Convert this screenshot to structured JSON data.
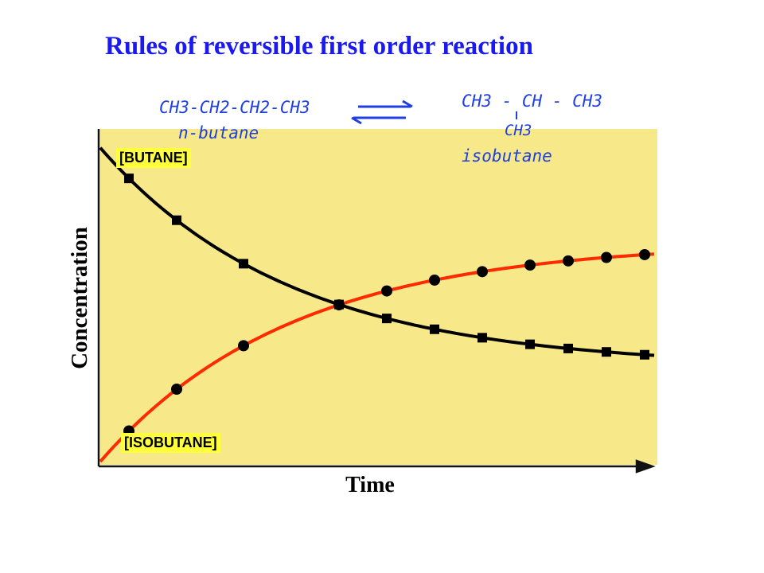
{
  "slide": {
    "title": "Rules of reversible first order reaction"
  },
  "reaction": {
    "reactant_formula": "CH3-CH2-CH2-CH3",
    "reactant_name": "n-butane",
    "product_formula": "CH3 - CH - CH3",
    "product_branch": "CH3",
    "product_name": "isobutane",
    "colors": {
      "ink": "#1f3fe0",
      "arrow": "#1f3fe0"
    }
  },
  "chart_data": {
    "type": "line",
    "xlabel": "Time",
    "ylabel": "Concentration",
    "x_ticks": false,
    "y_ticks": false,
    "grid": false,
    "background": "#f7e98a",
    "series": [
      {
        "name": "[BUTANE]",
        "color": "#000000",
        "marker": "square",
        "curve": {
          "start": 1.0,
          "end": 0.3,
          "rate": 0.25
        },
        "points_x": [
          0.6,
          1.6,
          3.0,
          5.0,
          6.0,
          7.0,
          8.0,
          9.0,
          9.8,
          10.6,
          11.4
        ]
      },
      {
        "name": "[ISOBUTANE]",
        "color": "#ff2a00",
        "marker": "circle",
        "curve": {
          "start": 0.0,
          "end": 0.7,
          "rate": 0.25
        },
        "points_x": [
          0.6,
          1.6,
          3.0,
          5.0,
          6.0,
          7.0,
          8.0,
          9.0,
          9.8,
          10.6,
          11.4
        ]
      }
    ],
    "xlim": [
      0,
      11.6
    ],
    "ylim": [
      0,
      1.05
    ]
  }
}
